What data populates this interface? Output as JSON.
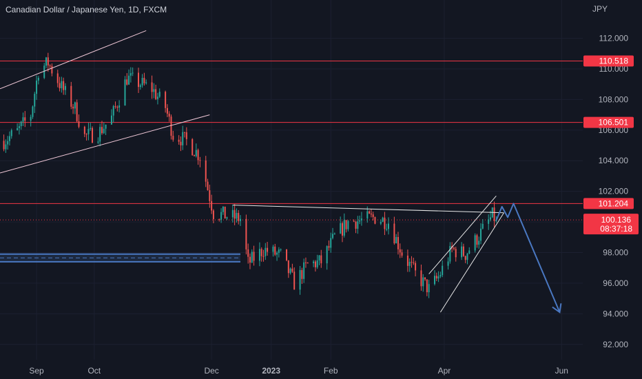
{
  "title": "Canadian Dollar / Japanese Yen, 1D, FXCM",
  "currency_unit": "JPY",
  "colors": {
    "background": "#131722",
    "up": "#26a69a",
    "down": "#ef5350",
    "level_line": "#f23645",
    "projection": "#4a78c2",
    "trendline": "#e8e8e8"
  },
  "chart_data": {
    "type": "candlestick",
    "title": "Canadian Dollar / Japanese Yen, 1D, FXCM",
    "ylabel": "JPY",
    "x_ticks": [
      {
        "label": "Sep",
        "date": "2022-09-01",
        "bold": false
      },
      {
        "label": "Oct",
        "date": "2022-10-01",
        "bold": false
      },
      {
        "label": "Dec",
        "date": "2022-12-01",
        "bold": false
      },
      {
        "label": "2023",
        "date": "2023-01-01",
        "bold": true
      },
      {
        "label": "Feb",
        "date": "2023-02-01",
        "bold": false
      },
      {
        "label": "Apr",
        "date": "2023-04-01",
        "bold": false
      },
      {
        "label": "Jun",
        "date": "2023-06-01",
        "bold": false
      }
    ],
    "y_ticks": [
      "92.000",
      "94.000",
      "96.000",
      "98.000",
      "100.000",
      "102.000",
      "104.000",
      "106.000",
      "108.000",
      "110.000",
      "112.000"
    ],
    "ylim": [
      91.0,
      114.5
    ],
    "xlim": [
      "2022-08-13",
      "2023-06-12"
    ],
    "price_path": [
      [
        "2022-08-15",
        105.3
      ],
      [
        "2022-08-22",
        105.9
      ],
      [
        "2022-08-29",
        107.0
      ],
      [
        "2022-09-02",
        109.9
      ],
      [
        "2022-09-07",
        110.4
      ],
      [
        "2022-09-14",
        108.8
      ],
      [
        "2022-09-21",
        107.4
      ],
      [
        "2022-09-26",
        105.6
      ],
      [
        "2022-10-03",
        105.8
      ],
      [
        "2022-10-10",
        106.8
      ],
      [
        "2022-10-18",
        109.4
      ],
      [
        "2022-10-24",
        109.1
      ],
      [
        "2022-10-31",
        108.7
      ],
      [
        "2022-11-07",
        107.5
      ],
      [
        "2022-11-11",
        105.7
      ],
      [
        "2022-11-18",
        105.3
      ],
      [
        "2022-11-25",
        104.3
      ],
      [
        "2022-12-02",
        100.6
      ],
      [
        "2022-12-09",
        100.4
      ],
      [
        "2022-12-16",
        100.2
      ],
      [
        "2022-12-20",
        97.3
      ],
      [
        "2022-12-28",
        98.2
      ],
      [
        "2023-01-06",
        97.8
      ],
      [
        "2023-01-13",
        96.0
      ],
      [
        "2023-01-20",
        97.2
      ],
      [
        "2023-01-27",
        97.4
      ],
      [
        "2023-02-03",
        99.0
      ],
      [
        "2023-02-10",
        100.0
      ],
      [
        "2023-02-17",
        100.1
      ],
      [
        "2023-02-24",
        100.3
      ],
      [
        "2023-03-03",
        100.0
      ],
      [
        "2023-03-10",
        98.0
      ],
      [
        "2023-03-17",
        96.6
      ],
      [
        "2023-03-24",
        95.6
      ],
      [
        "2023-03-29",
        96.4
      ],
      [
        "2023-04-05",
        98.2
      ],
      [
        "2023-04-12",
        97.9
      ],
      [
        "2023-04-19",
        99.1
      ],
      [
        "2023-04-26",
        100.4
      ],
      [
        "2023-04-28",
        100.136
      ]
    ],
    "price_levels": [
      {
        "label": "110.518",
        "value": 110.518
      },
      {
        "label": "106.501",
        "value": 106.501
      },
      {
        "label": "101.204",
        "value": 101.204
      }
    ],
    "last_price": {
      "label": "100.136",
      "value": 100.136,
      "countdown": "08:37:18"
    },
    "support_zone": [
      97.4,
      97.9
    ],
    "drawings": {
      "upper_channel_top": [
        [
          "2022-08-13",
          108.7
        ],
        [
          "2022-10-28",
          112.5
        ]
      ],
      "upper_channel_bottom": [
        [
          "2022-08-13",
          103.2
        ],
        [
          "2022-11-30",
          107.0
        ]
      ],
      "neckline": [
        [
          "2022-12-12",
          101.1
        ],
        [
          "2023-05-02",
          100.6
        ]
      ],
      "wedge_top": [
        [
          "2023-03-24",
          96.6
        ],
        [
          "2023-04-28",
          101.7
        ]
      ],
      "wedge_bottom": [
        [
          "2023-03-30",
          94.1
        ],
        [
          "2023-05-02",
          100.6
        ]
      ],
      "projection": [
        [
          "2023-04-28",
          100.1
        ],
        [
          "2023-05-01",
          101.0
        ],
        [
          "2023-05-04",
          100.3
        ],
        [
          "2023-05-07",
          101.2
        ],
        [
          "2023-05-31",
          94.1
        ]
      ],
      "projection_arrow_end": [
        "2023-05-31",
        94.1
      ]
    }
  }
}
